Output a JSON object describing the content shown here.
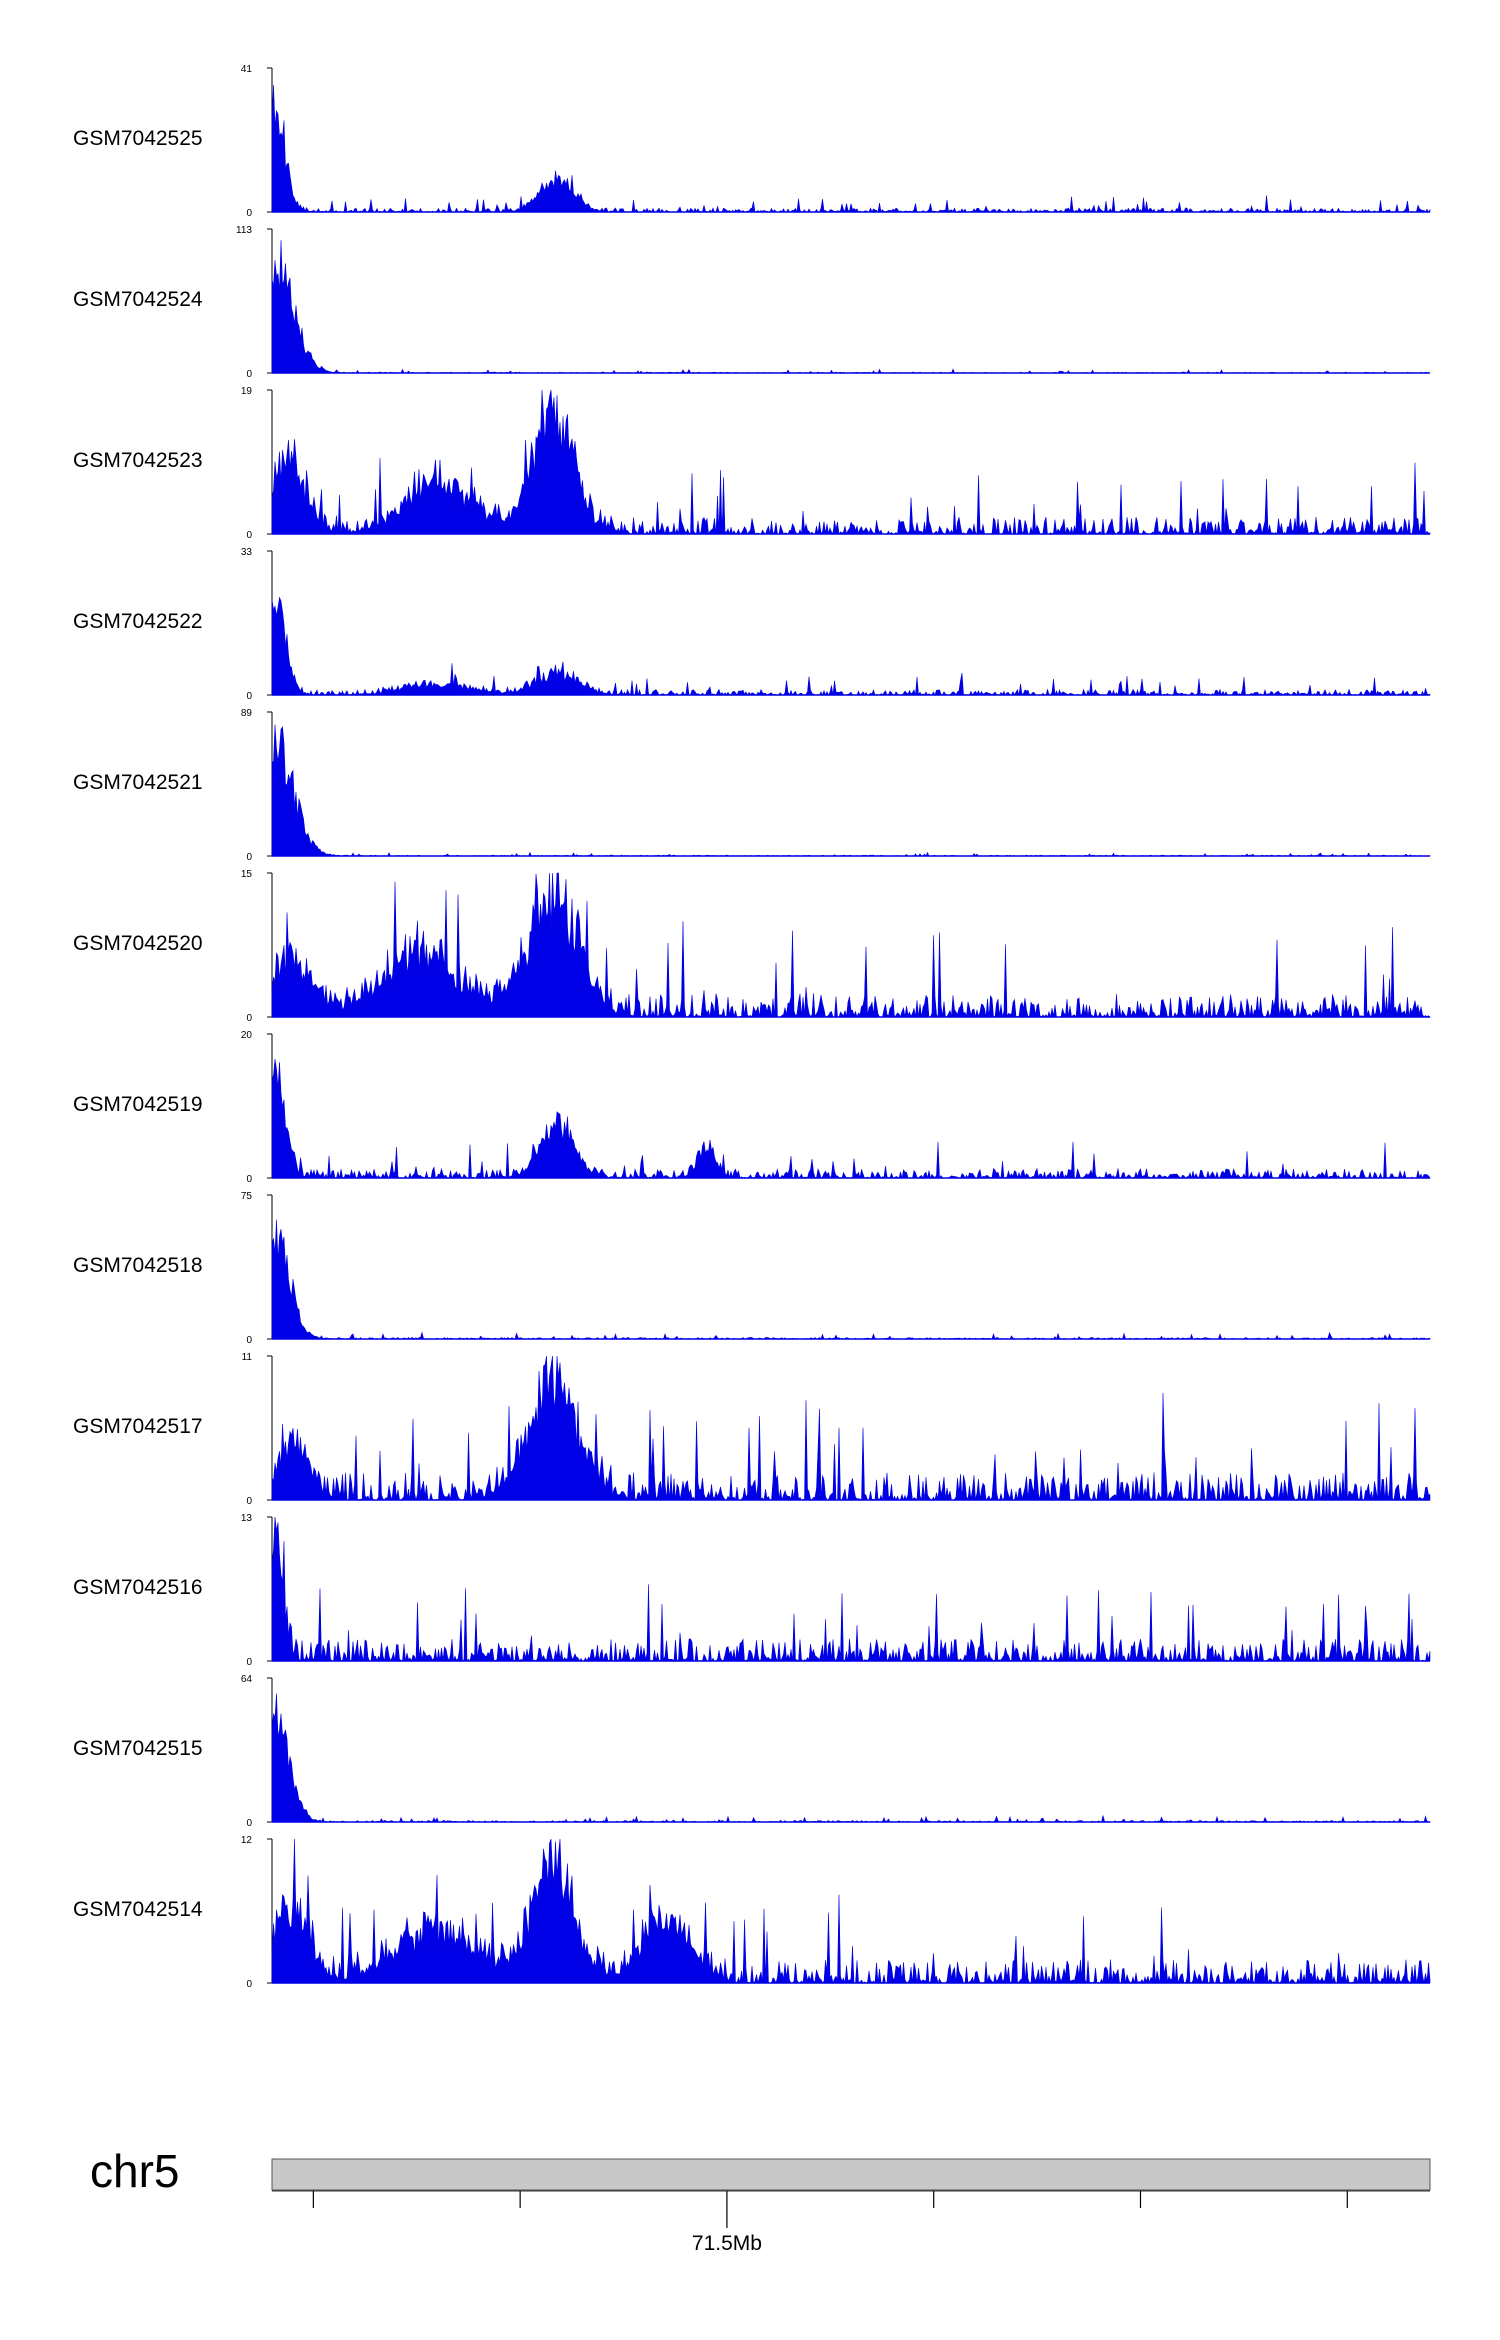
{
  "chart_data": {
    "type": "area",
    "title": "",
    "colors": {
      "signal": "#0000e6",
      "axis": "#000000",
      "ideogram_fill": "#c8c8c8"
    },
    "region": {
      "chromosome": "chr5",
      "x_range_mb": [
        71.39,
        71.67
      ],
      "tick_positions_mb": [
        71.4,
        71.45,
        71.5,
        71.55,
        71.6,
        71.65
      ],
      "tick_labels": [
        {
          "pos_mb": 71.5,
          "label": "71.5Mb"
        }
      ]
    },
    "tracks": [
      {
        "name": "GSM7042525",
        "ymax": 41,
        "ymin": 0,
        "peaks": [
          {
            "pos_mb": 71.3905,
            "height": 41,
            "width_mb": 0.0025
          },
          {
            "pos_mb": 71.459,
            "height": 12,
            "width_mb": 0.004
          }
        ],
        "noise": 0.05,
        "seed": 11
      },
      {
        "name": "GSM7042524",
        "ymax": 113,
        "ymin": 0,
        "peaks": [
          {
            "pos_mb": 71.3905,
            "height": 113,
            "width_mb": 0.0045
          }
        ],
        "noise": 0.012,
        "seed": 12
      },
      {
        "name": "GSM7042523",
        "ymax": 19,
        "ymin": 0,
        "peaks": [
          {
            "pos_mb": 71.394,
            "height": 12,
            "width_mb": 0.004
          },
          {
            "pos_mb": 71.43,
            "height": 8,
            "width_mb": 0.008
          },
          {
            "pos_mb": 71.458,
            "height": 19,
            "width_mb": 0.005
          }
        ],
        "noise": 0.22,
        "seed": 13
      },
      {
        "name": "GSM7042522",
        "ymax": 33,
        "ymin": 0,
        "peaks": [
          {
            "pos_mb": 71.3905,
            "height": 33,
            "width_mb": 0.0025
          },
          {
            "pos_mb": 71.43,
            "height": 3,
            "width_mb": 0.008
          },
          {
            "pos_mb": 71.459,
            "height": 6,
            "width_mb": 0.005
          }
        ],
        "noise": 0.07,
        "seed": 14
      },
      {
        "name": "GSM7042521",
        "ymax": 89,
        "ymin": 0,
        "peaks": [
          {
            "pos_mb": 71.3905,
            "height": 89,
            "width_mb": 0.0045
          }
        ],
        "noise": 0.012,
        "seed": 15
      },
      {
        "name": "GSM7042520",
        "ymax": 15,
        "ymin": 0,
        "peaks": [
          {
            "pos_mb": 71.395,
            "height": 7,
            "width_mb": 0.005
          },
          {
            "pos_mb": 71.426,
            "height": 8,
            "width_mb": 0.009
          },
          {
            "pos_mb": 71.458,
            "height": 15,
            "width_mb": 0.006
          }
        ],
        "noise": 0.3,
        "seed": 16
      },
      {
        "name": "GSM7042519",
        "ymax": 20,
        "ymin": 0,
        "peaks": [
          {
            "pos_mb": 71.3905,
            "height": 20,
            "width_mb": 0.0025
          },
          {
            "pos_mb": 71.459,
            "height": 9,
            "width_mb": 0.004
          },
          {
            "pos_mb": 71.495,
            "height": 6,
            "width_mb": 0.002
          }
        ],
        "noise": 0.12,
        "seed": 17
      },
      {
        "name": "GSM7042518",
        "ymax": 75,
        "ymin": 0,
        "peaks": [
          {
            "pos_mb": 71.3905,
            "height": 75,
            "width_mb": 0.0035
          }
        ],
        "noise": 0.02,
        "seed": 18
      },
      {
        "name": "GSM7042517",
        "ymax": 11,
        "ymin": 0,
        "peaks": [
          {
            "pos_mb": 71.395,
            "height": 5,
            "width_mb": 0.004
          },
          {
            "pos_mb": 71.458,
            "height": 11,
            "width_mb": 0.006
          }
        ],
        "noise": 0.35,
        "seed": 19
      },
      {
        "name": "GSM7042516",
        "ymax": 13,
        "ymin": 0,
        "peaks": [
          {
            "pos_mb": 71.3905,
            "height": 13,
            "width_mb": 0.002
          }
        ],
        "noise": 0.28,
        "seed": 20
      },
      {
        "name": "GSM7042515",
        "ymax": 64,
        "ymin": 0,
        "peaks": [
          {
            "pos_mb": 71.3905,
            "height": 64,
            "width_mb": 0.0035
          }
        ],
        "noise": 0.02,
        "seed": 21
      },
      {
        "name": "GSM7042514",
        "ymax": 12,
        "ymin": 0,
        "peaks": [
          {
            "pos_mb": 71.395,
            "height": 8,
            "width_mb": 0.004
          },
          {
            "pos_mb": 71.43,
            "height": 5,
            "width_mb": 0.01
          },
          {
            "pos_mb": 71.458,
            "height": 12,
            "width_mb": 0.005
          },
          {
            "pos_mb": 71.485,
            "height": 6,
            "width_mb": 0.006
          }
        ],
        "noise": 0.3,
        "seed": 22
      }
    ]
  }
}
